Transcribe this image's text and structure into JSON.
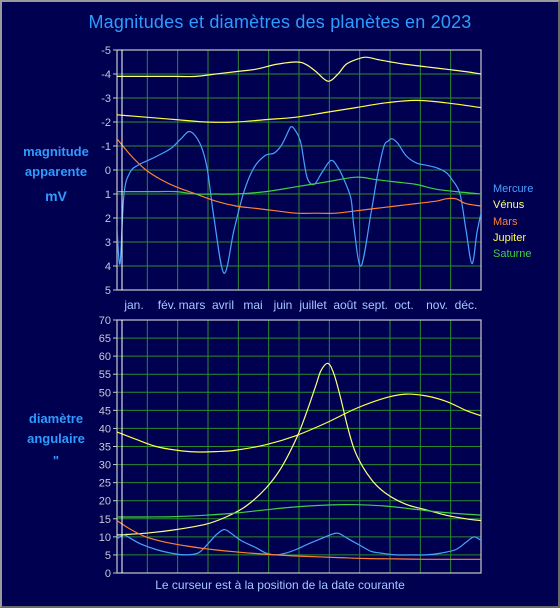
{
  "title": "Magnitudes et diamètres des planètes en 2023",
  "footer": "Le curseur est à la position de la date courante",
  "top_label": {
    "line1": "magnitude",
    "line2": "apparente",
    "line3": "mV"
  },
  "bottom_label": {
    "line1": "diamètre",
    "line2": "angulaire",
    "line3": "\""
  },
  "months": [
    "jan.",
    "fév.",
    "mars",
    "avril",
    "mai",
    "juin",
    "juillet",
    "août",
    "sept.",
    "oct.",
    "nov.",
    "déc."
  ],
  "colors": {
    "Mercure": "#4aa0ff",
    "Vénus": "#ffff80",
    "Mars": "#ff8030",
    "Jupiter": "#ffff40",
    "Saturne": "#40d040",
    "grid": "#2e8a2e",
    "axis": "#c8c8c8",
    "cursor": "#ffffff"
  },
  "chart_data": [
    {
      "type": "line",
      "ylabel": "magnitude apparente mV",
      "ylim": [
        -5,
        5
      ],
      "y_inverted": true,
      "yticks": [
        -5,
        -4,
        -3,
        -2,
        -1,
        0,
        1,
        2,
        3,
        4,
        5
      ],
      "xticks": [
        "jan.",
        "fév.",
        "mars",
        "avril",
        "mai",
        "juin",
        "juillet",
        "août",
        "sept.",
        "oct.",
        "nov.",
        "déc."
      ],
      "grid": true,
      "legend_position": "right",
      "x_unit": "day of year 2023",
      "xlim": [
        1,
        365
      ],
      "cursor_day": 6,
      "series": [
        {
          "name": "Mercure",
          "x": [
            1,
            4,
            8,
            14,
            22,
            32,
            42,
            55,
            65,
            74,
            84,
            91,
            98,
            108,
            118,
            128,
            138,
            149,
            158,
            165,
            170,
            175,
            180,
            185,
            191,
            198,
            206,
            215,
            222,
            228,
            235,
            238,
            245,
            255,
            262,
            268,
            272,
            276,
            282,
            290,
            300,
            310,
            320,
            330,
            336,
            344,
            350,
            356,
            361,
            365
          ],
          "y": [
            2.4,
            3.9,
            1.0,
            0.1,
            -0.2,
            -0.4,
            -0.6,
            -0.9,
            -1.3,
            -1.6,
            -1.1,
            -0.1,
            2.0,
            4.3,
            2.5,
            0.9,
            -0.1,
            -0.6,
            -0.7,
            -1.0,
            -1.4,
            -1.8,
            -1.6,
            -1.1,
            0.3,
            0.6,
            0.1,
            -0.4,
            -0.1,
            0.4,
            1.2,
            2.4,
            4.0,
            1.8,
            0.1,
            -1.0,
            -1.2,
            -1.3,
            -1.1,
            -0.6,
            -0.3,
            -0.2,
            -0.1,
            0.1,
            0.4,
            1.0,
            2.5,
            3.9,
            2.6,
            1.8
          ]
        },
        {
          "name": "Vénus",
          "x": [
            1,
            20,
            40,
            60,
            80,
            100,
            120,
            140,
            160,
            180,
            190,
            200,
            212,
            222,
            230,
            240,
            250,
            262,
            275,
            290,
            310,
            330,
            350,
            365
          ],
          "y": [
            -3.9,
            -3.9,
            -3.9,
            -3.9,
            -3.9,
            -4.0,
            -4.1,
            -4.2,
            -4.4,
            -4.5,
            -4.4,
            -4.1,
            -3.7,
            -4.0,
            -4.4,
            -4.6,
            -4.7,
            -4.6,
            -4.5,
            -4.4,
            -4.3,
            -4.2,
            -4.1,
            -4.0
          ]
        },
        {
          "name": "Mars",
          "x": [
            1,
            15,
            30,
            45,
            60,
            80,
            100,
            120,
            140,
            160,
            180,
            200,
            220,
            240,
            260,
            280,
            300,
            320,
            330,
            340,
            350,
            365
          ],
          "y": [
            -1.3,
            -0.6,
            0.0,
            0.4,
            0.7,
            1.0,
            1.3,
            1.5,
            1.6,
            1.7,
            1.8,
            1.8,
            1.8,
            1.7,
            1.6,
            1.5,
            1.4,
            1.3,
            1.2,
            1.2,
            1.4,
            1.5
          ]
        },
        {
          "name": "Jupiter",
          "x": [
            1,
            30,
            60,
            90,
            120,
            150,
            180,
            210,
            240,
            270,
            300,
            330,
            365
          ],
          "y": [
            -2.3,
            -2.2,
            -2.1,
            -2.0,
            -2.0,
            -2.1,
            -2.2,
            -2.4,
            -2.6,
            -2.8,
            -2.9,
            -2.8,
            -2.6
          ]
        },
        {
          "name": "Saturne",
          "x": [
            1,
            20,
            40,
            60,
            80,
            100,
            120,
            150,
            180,
            210,
            240,
            260,
            280,
            300,
            320,
            340,
            365
          ],
          "y": [
            0.9,
            0.9,
            0.9,
            0.9,
            1.0,
            1.0,
            1.0,
            0.9,
            0.7,
            0.5,
            0.3,
            0.4,
            0.5,
            0.6,
            0.8,
            0.9,
            1.0
          ]
        }
      ]
    },
    {
      "type": "line",
      "ylabel": "diamètre angulaire \"",
      "ylim": [
        0,
        70
      ],
      "yticks": [
        0,
        5,
        10,
        15,
        20,
        25,
        30,
        35,
        40,
        45,
        50,
        55,
        60,
        65,
        70
      ],
      "grid": true,
      "x_unit": "day of year 2023",
      "xlim": [
        1,
        365
      ],
      "cursor_day": 6,
      "series": [
        {
          "name": "Vénus",
          "x": [
            1,
            30,
            60,
            90,
            110,
            130,
            150,
            165,
            180,
            190,
            200,
            205,
            212,
            218,
            225,
            232,
            240,
            255,
            270,
            290,
            310,
            330,
            350,
            365
          ],
          "y": [
            10.5,
            11.0,
            12.0,
            13.5,
            15.5,
            18.5,
            23.5,
            29.0,
            37.0,
            44.0,
            52.0,
            56.0,
            58.0,
            55.0,
            48.0,
            40.0,
            33.0,
            26.0,
            22.0,
            19.0,
            17.5,
            16.0,
            15.0,
            14.5
          ]
        },
        {
          "name": "Jupiter",
          "x": [
            1,
            20,
            40,
            60,
            80,
            100,
            120,
            150,
            180,
            210,
            240,
            270,
            290,
            310,
            330,
            350,
            365
          ],
          "y": [
            39.0,
            37.0,
            35.0,
            34.0,
            33.5,
            33.6,
            34.0,
            35.5,
            38.0,
            41.5,
            45.5,
            48.5,
            49.5,
            49.0,
            47.5,
            45.0,
            43.5
          ]
        },
        {
          "name": "Saturne",
          "x": [
            1,
            30,
            60,
            90,
            120,
            150,
            180,
            210,
            240,
            270,
            300,
            330,
            365
          ],
          "y": [
            15.5,
            15.5,
            15.6,
            16.0,
            16.6,
            17.5,
            18.3,
            18.8,
            18.9,
            18.5,
            17.6,
            16.7,
            16.0
          ]
        },
        {
          "name": "Mercure",
          "x": [
            1,
            8,
            15,
            25,
            40,
            55,
            70,
            82,
            90,
            100,
            108,
            115,
            125,
            140,
            150,
            160,
            170,
            180,
            192,
            205,
            214,
            222,
            232,
            245,
            255,
            265,
            280,
            295,
            310,
            325,
            340,
            350,
            358,
            365
          ],
          "y": [
            9.5,
            10.5,
            9.5,
            8.0,
            6.5,
            5.5,
            5.0,
            5.5,
            7.5,
            10.5,
            12.0,
            11.0,
            9.0,
            7.0,
            5.5,
            5.0,
            5.5,
            6.5,
            8.0,
            9.5,
            10.5,
            11.0,
            9.5,
            7.5,
            6.0,
            5.5,
            5.0,
            5.0,
            5.0,
            5.5,
            6.5,
            8.5,
            10.0,
            9.0
          ]
        },
        {
          "name": "Mars",
          "x": [
            1,
            15,
            30,
            50,
            70,
            90,
            110,
            130,
            160,
            190,
            220,
            250,
            280,
            310,
            340,
            365
          ],
          "y": [
            14.5,
            12.0,
            10.0,
            8.5,
            7.5,
            6.7,
            6.1,
            5.6,
            5.0,
            4.6,
            4.3,
            4.0,
            3.9,
            3.8,
            3.8,
            3.8
          ]
        }
      ]
    }
  ]
}
